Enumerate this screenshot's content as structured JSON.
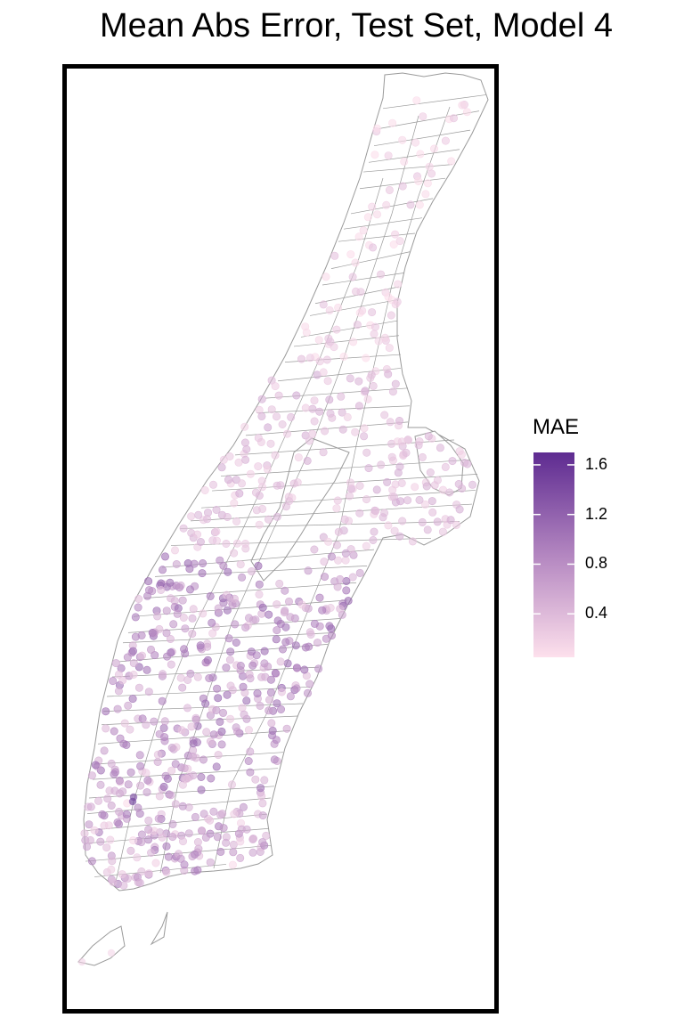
{
  "title": "Mean Abs Error, Test Set, Model 4",
  "legend": {
    "title": "MAE",
    "ticks": [
      "1.6",
      "1.2",
      "0.8",
      "0.4"
    ],
    "tick_values": [
      1.6,
      1.2,
      0.8,
      0.4
    ],
    "range": [
      0.05,
      1.7
    ],
    "color_low": "#fde0ec",
    "color_high": "#5e2b91"
  },
  "colors": {
    "frame": "#000000",
    "tract_stroke": "#9a9a9a",
    "map_fill": "#ffffff"
  },
  "point_opacity": 0.6
}
